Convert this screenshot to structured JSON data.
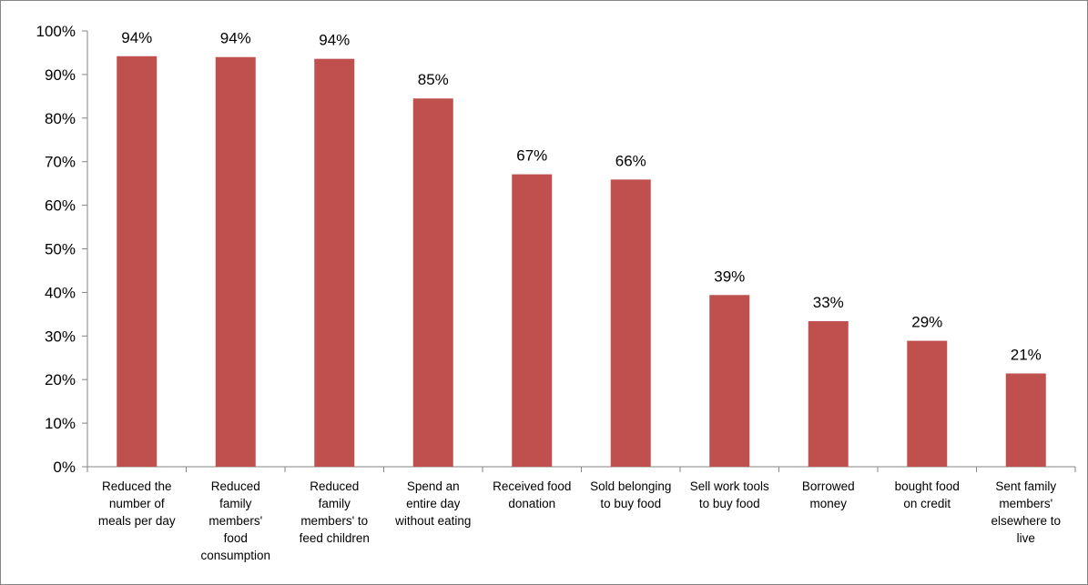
{
  "chart_data": {
    "type": "bar",
    "categories": [
      [
        "Reduced  the",
        "number of",
        "meals per day"
      ],
      [
        "Reduced",
        "family",
        "members'",
        "food",
        "consumption"
      ],
      [
        "Reduced",
        "family",
        "members' to",
        "feed children"
      ],
      [
        "Spend an",
        "entire day",
        "without eating"
      ],
      [
        "Received food",
        "donation"
      ],
      [
        "Sold belonging",
        "to buy food"
      ],
      [
        "Sell work tools",
        "to buy food"
      ],
      [
        "Borrowed",
        "money"
      ],
      [
        "bought food",
        "on credit"
      ],
      [
        "Sent family",
        "members'",
        "elsewhere to",
        "live"
      ]
    ],
    "values": [
      94.2,
      94.0,
      93.6,
      84.5,
      67.1,
      65.9,
      39.4,
      33.4,
      28.9,
      21.4
    ],
    "data_labels": [
      "94%",
      "94%",
      "94%",
      "85%",
      "67%",
      "66%",
      "39%",
      "33%",
      "29%",
      "21%"
    ],
    "ylim": [
      0,
      100
    ],
    "yticks": [
      0,
      10,
      20,
      30,
      40,
      50,
      60,
      70,
      80,
      90,
      100
    ],
    "ytick_labels": [
      "0%",
      "10%",
      "20%",
      "30%",
      "40%",
      "50%",
      "60%",
      "70%",
      "80%",
      "90%",
      "100%"
    ],
    "title": "",
    "xlabel": "",
    "ylabel": "",
    "grid": false,
    "legend": "none",
    "colors": {
      "bar": "#C0504D",
      "axis": "#868686",
      "text": "#000000"
    }
  }
}
